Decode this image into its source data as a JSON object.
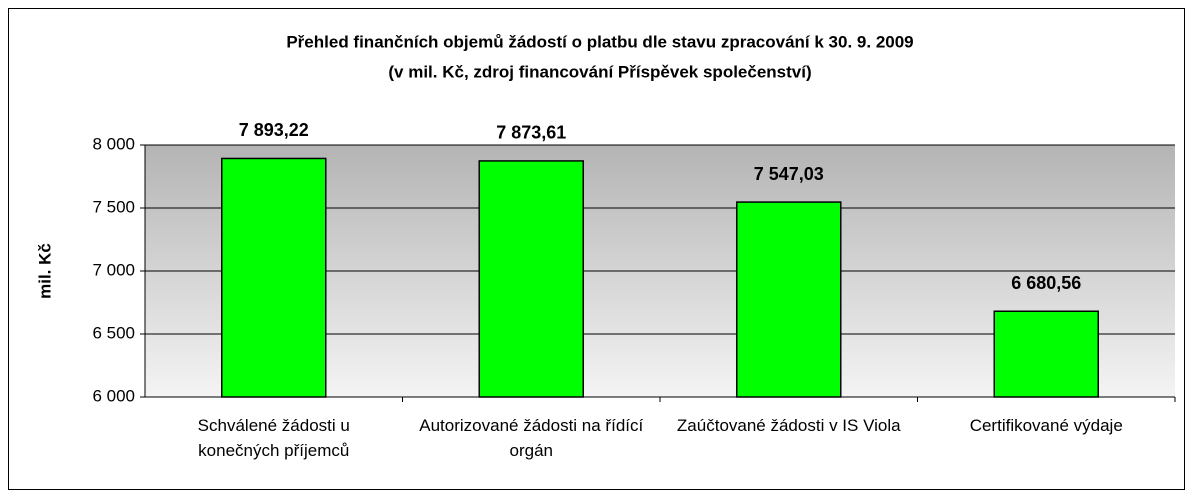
{
  "chart_data": {
    "type": "bar",
    "title": "Přehled finančních objemů žádostí o platbu dle stavu zpracování k 30. 9. 2009",
    "subtitle": "(v mil. Kč, zdroj financování Příspěvek společenství)",
    "y_label": "mil. Kč",
    "categories": [
      "Schválené žádosti u konečných příjemců",
      "Autorizované žádosti na řídící orgán",
      "Zaúčtované žádosti v IS Viola",
      "Certifikované výdaje"
    ],
    "values": [
      7893.22,
      7873.61,
      7547.03,
      6680.56
    ],
    "value_labels": [
      "7 893,22",
      "7 873,61",
      "7 547,03",
      "6 680,56"
    ],
    "color": "#00ff00",
    "ylim": [
      6000,
      8000
    ],
    "yticks": [
      {
        "value": 6000,
        "label": "6 000"
      },
      {
        "value": 6500,
        "label": "6 500"
      },
      {
        "value": 7000,
        "label": "7 000"
      },
      {
        "value": 7500,
        "label": "7 500"
      },
      {
        "value": 8000,
        "label": "8 000"
      }
    ],
    "grid": true
  }
}
